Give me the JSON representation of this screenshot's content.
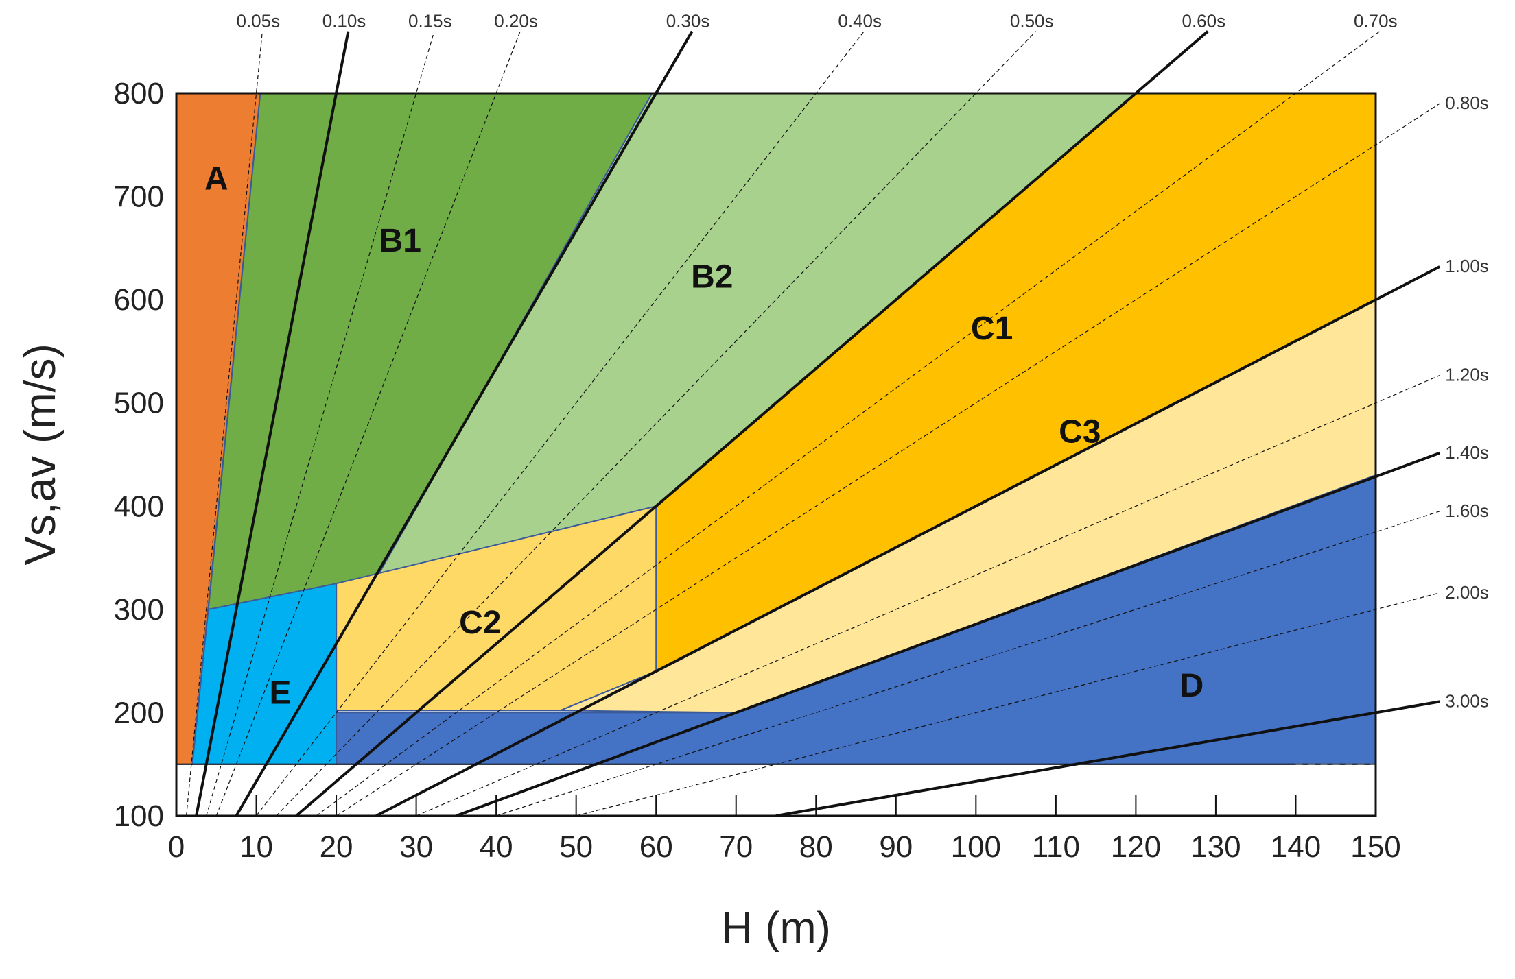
{
  "chart_data": {
    "type": "area",
    "xlabel": "H (m)",
    "ylabel": "Vs,av (m/s)",
    "xlim": [
      0,
      150
    ],
    "ylim": [
      100,
      800
    ],
    "x_ticks": [
      0,
      10,
      20,
      30,
      40,
      50,
      60,
      70,
      80,
      90,
      100,
      110,
      120,
      130,
      140,
      150
    ],
    "y_ticks": [
      100,
      200,
      300,
      400,
      500,
      600,
      700,
      800
    ],
    "grid": false,
    "zones": [
      {
        "name": "A",
        "color": "#ED7D31",
        "label_at": [
          5,
          715
        ],
        "polygon": [
          [
            0,
            150
          ],
          [
            2,
            150
          ],
          [
            10.5,
            800
          ],
          [
            0,
            800
          ]
        ]
      },
      {
        "name": "B1",
        "color": "#70AD47",
        "label_at": [
          28,
          655
        ],
        "polygon": [
          [
            4,
            300
          ],
          [
            10.5,
            800
          ],
          [
            59.5,
            800
          ],
          [
            25,
            330
          ],
          [
            19,
            320
          ]
        ]
      },
      {
        "name": "B2",
        "color": "#A9D18E",
        "label_at": [
          67,
          620
        ],
        "polygon": [
          [
            25,
            330
          ],
          [
            59.5,
            800
          ],
          [
            120,
            800
          ],
          [
            60,
            400
          ]
        ]
      },
      {
        "name": "C1",
        "color": "#FFC000",
        "label_at": [
          102,
          570
        ],
        "polygon": [
          [
            60,
            400
          ],
          [
            120,
            800
          ],
          [
            150,
            800
          ],
          [
            150,
            600
          ],
          [
            60,
            240
          ]
        ]
      },
      {
        "name": "C2",
        "color": "#FFD966",
        "label_at": [
          38,
          285
        ],
        "polygon": [
          [
            20,
            325
          ],
          [
            60,
            400
          ],
          [
            60,
            240
          ],
          [
            48,
            202
          ],
          [
            20,
            202
          ]
        ]
      },
      {
        "name": "C3",
        "color": "#FFE699",
        "label_at": [
          113,
          470
        ],
        "polygon": [
          [
            48,
            202
          ],
          [
            60,
            240
          ],
          [
            150,
            600
          ],
          [
            150,
            430
          ],
          [
            70,
            200
          ]
        ]
      },
      {
        "name": "D",
        "color": "#4472C4",
        "label_at": [
          127,
          224
        ],
        "polygon": [
          [
            20,
            200
          ],
          [
            70,
            200
          ],
          [
            150,
            430
          ],
          [
            150,
            150
          ],
          [
            20,
            150
          ]
        ]
      },
      {
        "name": "E",
        "color": "#00B0F0",
        "label_at": [
          13,
          217
        ],
        "polygon": [
          [
            2,
            150
          ],
          [
            4,
            300
          ],
          [
            20,
            325
          ],
          [
            20,
            150
          ]
        ]
      }
    ],
    "period_lines": [
      {
        "label": "0.05s",
        "period": 0.05
      },
      {
        "label": "0.10s",
        "period": 0.1
      },
      {
        "label": "0.15s",
        "period": 0.15
      },
      {
        "label": "0.20s",
        "period": 0.2
      },
      {
        "label": "0.30s",
        "period": 0.3
      },
      {
        "label": "0.40s",
        "period": 0.4
      },
      {
        "label": "0.50s",
        "period": 0.5
      },
      {
        "label": "0.60s",
        "period": 0.6
      },
      {
        "label": "0.70s",
        "period": 0.7
      },
      {
        "label": "0.80s",
        "period": 0.8
      },
      {
        "label": "1.00s",
        "period": 1.0
      },
      {
        "label": "1.20s",
        "period": 1.2
      },
      {
        "label": "1.40s",
        "period": 1.4
      },
      {
        "label": "1.60s",
        "period": 1.6
      },
      {
        "label": "2.00s",
        "period": 2.0
      },
      {
        "label": "3.00s",
        "period": 3.0
      }
    ]
  }
}
